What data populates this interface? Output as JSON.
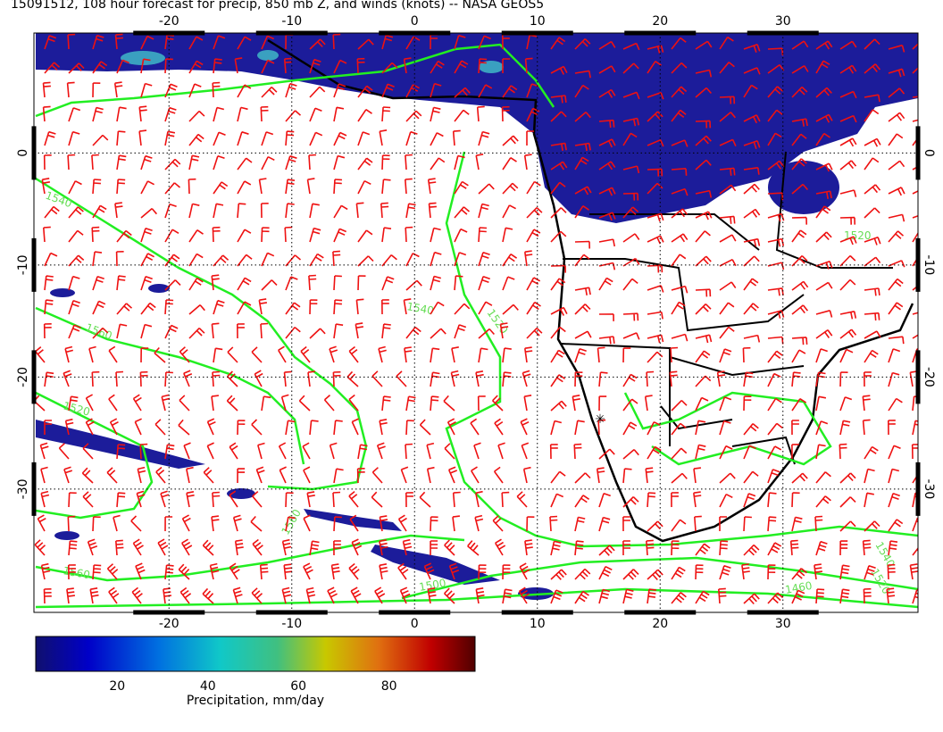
{
  "title": "15091512, 108 hour forecast for precip, 850 mb Z, and winds (knots) -- NASA GEOS5",
  "lon_range": [
    -31,
    41
  ],
  "lat_range": [
    10.7,
    -41
  ],
  "lon_ticks": [
    -20,
    -10,
    0,
    10,
    20,
    30
  ],
  "lat_ticks": [
    0,
    -10,
    -20,
    -30
  ],
  "colorbar": {
    "range": [
      2,
      99
    ],
    "ticks": [
      20,
      40,
      60,
      80
    ],
    "label": "Precipitation, mm/day"
  },
  "contour_labels": [
    "1540",
    "1560",
    "1520",
    "1560",
    "1560",
    "1540",
    "1520",
    "1500",
    "1520",
    "1540",
    "1520",
    "1460"
  ]
}
